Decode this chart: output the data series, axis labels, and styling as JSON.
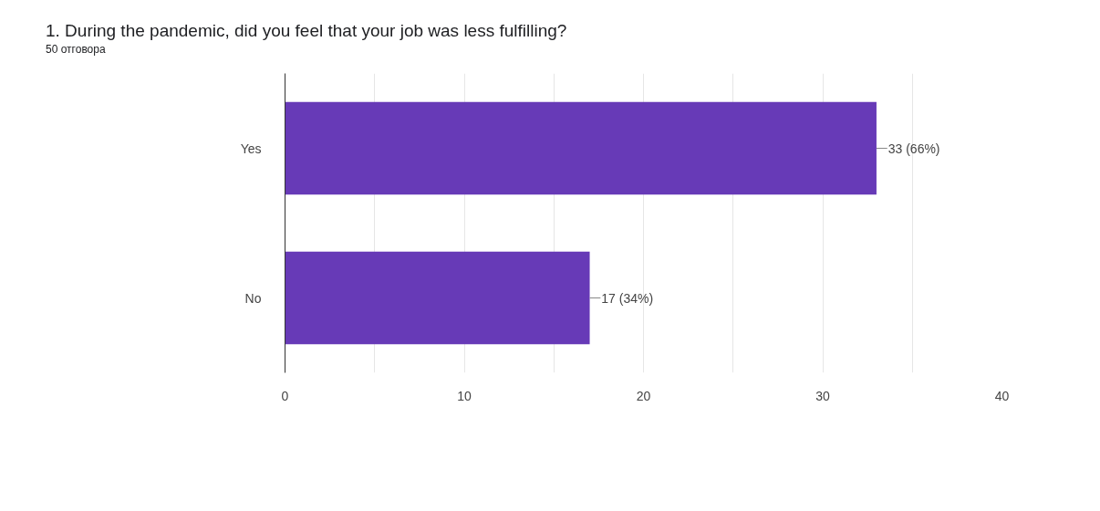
{
  "chart_data": {
    "type": "bar",
    "orientation": "horizontal",
    "title": "1. During the pandemic, did you feel that your job was less fulfilling?",
    "subtitle": "50 отговора",
    "categories": [
      "Yes",
      "No"
    ],
    "values": [
      33,
      17
    ],
    "color": "#673ab7",
    "value_labels": [
      "33 (66%)",
      "17 (34%)"
    ],
    "xlim": [
      0,
      40
    ],
    "xticks": [
      0,
      {
        "value": 5,
        "label": null
      },
      10,
      {
        "value": 15,
        "label": null
      },
      20,
      {
        "value": 25,
        "label": null
      },
      30,
      {
        "value": 35,
        "label": null
      },
      40
    ],
    "grid": "x"
  }
}
